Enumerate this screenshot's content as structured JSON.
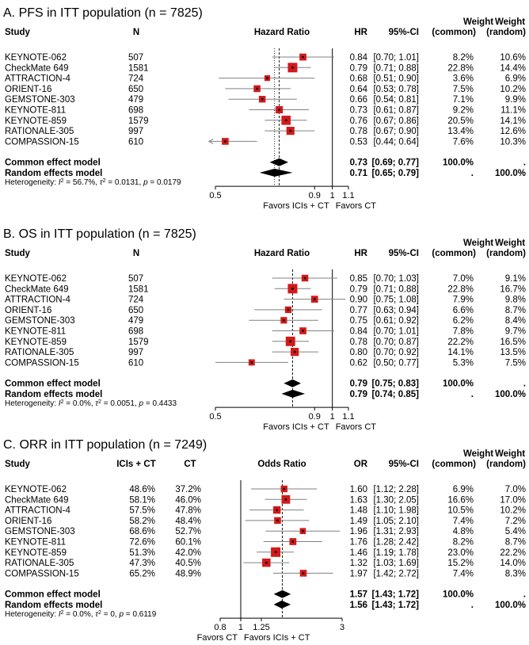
{
  "chart_data": [
    {
      "type": "forest",
      "title": "A. PFS in ITT population (n = 7825)",
      "columns": {
        "study": "Study",
        "n": "N",
        "plot": "Hazard Ratio",
        "est": "HR",
        "ci": "95%-CI",
        "w_top": "Weight",
        "w_top2": "Weight",
        "w_common": "(common)",
        "w_random": "(random)"
      },
      "xscale": "log",
      "xlim": [
        0.5,
        1.1
      ],
      "ticks": [
        0.5,
        0.9,
        1,
        1.1
      ],
      "tick_labels": [
        "0.5",
        "0.9",
        "1",
        "1.1"
      ],
      "reference": 1,
      "favors_left": "Favors ICIs + CT",
      "favors_right": "Favors CT",
      "studies": [
        {
          "name": "KEYNOTE-062",
          "c1": "507",
          "est": 0.84,
          "lo": 0.7,
          "hi": 1.01,
          "est_text": "0.84",
          "ci_text": "[0.70; 1.01]",
          "wc": "8.2%",
          "wr": "10.6%"
        },
        {
          "name": "CheckMate 649",
          "c1": "1581",
          "est": 0.79,
          "lo": 0.71,
          "hi": 0.88,
          "est_text": "0.79",
          "ci_text": "[0.71; 0.88]",
          "wc": "22.8%",
          "wr": "14.4%"
        },
        {
          "name": "ATTRACTION-4",
          "c1": "724",
          "est": 0.68,
          "lo": 0.51,
          "hi": 0.9,
          "est_text": "0.68",
          "ci_text": "[0.51; 0.90]",
          "wc": "3.6%",
          "wr": "6.9%"
        },
        {
          "name": "ORIENT-16",
          "c1": "650",
          "est": 0.64,
          "lo": 0.53,
          "hi": 0.78,
          "est_text": "0.64",
          "ci_text": "[0.53; 0.78]",
          "wc": "7.5%",
          "wr": "10.2%"
        },
        {
          "name": "GEMSTONE-303",
          "c1": "479",
          "est": 0.66,
          "lo": 0.54,
          "hi": 0.81,
          "est_text": "0.66",
          "ci_text": "[0.54; 0.81]",
          "wc": "7.1%",
          "wr": "9.9%"
        },
        {
          "name": "KEYNOTE-811",
          "c1": "698",
          "est": 0.73,
          "lo": 0.61,
          "hi": 0.87,
          "est_text": "0.73",
          "ci_text": "[0.61; 0.87]",
          "wc": "9.2%",
          "wr": "11.1%"
        },
        {
          "name": "KEYNOTE-859",
          "c1": "1579",
          "est": 0.76,
          "lo": 0.67,
          "hi": 0.86,
          "est_text": "0.76",
          "ci_text": "[0.67; 0.86]",
          "wc": "20.5%",
          "wr": "14.1%"
        },
        {
          "name": "RATIONALE-305",
          "c1": "997",
          "est": 0.78,
          "lo": 0.67,
          "hi": 0.9,
          "est_text": "0.78",
          "ci_text": "[0.67; 0.90]",
          "wc": "13.4%",
          "wr": "12.6%"
        },
        {
          "name": "COMPASSION-15",
          "c1": "610",
          "est": 0.53,
          "lo": 0.44,
          "hi": 0.64,
          "est_text": "0.53",
          "ci_text": "[0.44; 0.64]",
          "wc": "7.6%",
          "wr": "10.3%",
          "arrow_left": true
        }
      ],
      "common": {
        "label": "Common effect model",
        "est": 0.73,
        "lo": 0.69,
        "hi": 0.77,
        "est_text": "0.73",
        "ci_text": "[0.69; 0.77]",
        "wc": "100.0%",
        "wr": "."
      },
      "random": {
        "label": "Random effects model",
        "est": 0.71,
        "lo": 0.65,
        "hi": 0.79,
        "est_text": "0.71",
        "ci_text": "[0.65; 0.79]",
        "wc": ".",
        "wr": "100.0%"
      },
      "heterogeneity": {
        "prefix": "Heterogeneity: ",
        "i2": "56.7%",
        "tau2": "0.0131",
        "p": "0.0179"
      }
    },
    {
      "type": "forest",
      "title": "B. OS in ITT population (n = 7825)",
      "columns": {
        "study": "Study",
        "n": "N",
        "plot": "Hazard Ratio",
        "est": "HR",
        "ci": "95%-CI",
        "w_top": "Weight",
        "w_top2": "Weight",
        "w_common": "(common)",
        "w_random": "(random)"
      },
      "xscale": "log",
      "xlim": [
        0.5,
        1.1
      ],
      "ticks": [
        0.5,
        0.9,
        1,
        1.1
      ],
      "tick_labels": [
        "0.5",
        "0.9",
        "1",
        "1.1"
      ],
      "reference": 1,
      "favors_left": "Favors ICIs + CT",
      "favors_right": "Favors CT",
      "studies": [
        {
          "name": "KEYNOTE-062",
          "c1": "507",
          "est": 0.85,
          "lo": 0.7,
          "hi": 1.03,
          "est_text": "0.85",
          "ci_text": "[0.70; 1.03]",
          "wc": "7.0%",
          "wr": "9.1%"
        },
        {
          "name": "CheckMate 649",
          "c1": "1581",
          "est": 0.79,
          "lo": 0.71,
          "hi": 0.88,
          "est_text": "0.79",
          "ci_text": "[0.71; 0.88]",
          "wc": "22.8%",
          "wr": "16.7%"
        },
        {
          "name": "ATTRACTION-4",
          "c1": "724",
          "est": 0.9,
          "lo": 0.75,
          "hi": 1.08,
          "est_text": "0.90",
          "ci_text": "[0.75; 1.08]",
          "wc": "7.9%",
          "wr": "9.8%"
        },
        {
          "name": "ORIENT-16",
          "c1": "650",
          "est": 0.77,
          "lo": 0.63,
          "hi": 0.94,
          "est_text": "0.77",
          "ci_text": "[0.63; 0.94]",
          "wc": "6.6%",
          "wr": "8.7%"
        },
        {
          "name": "GEMSTONE-303",
          "c1": "479",
          "est": 0.75,
          "lo": 0.61,
          "hi": 0.92,
          "est_text": "0.75",
          "ci_text": "[0.61; 0.92]",
          "wc": "6.2%",
          "wr": "8.4%"
        },
        {
          "name": "KEYNOTE-811",
          "c1": "698",
          "est": 0.84,
          "lo": 0.7,
          "hi": 1.01,
          "est_text": "0.84",
          "ci_text": "[0.70; 1.01]",
          "wc": "7.8%",
          "wr": "9.7%"
        },
        {
          "name": "KEYNOTE-859",
          "c1": "1579",
          "est": 0.78,
          "lo": 0.7,
          "hi": 0.87,
          "est_text": "0.78",
          "ci_text": "[0.70; 0.87]",
          "wc": "22.2%",
          "wr": "16.5%"
        },
        {
          "name": "RATIONALE-305",
          "c1": "997",
          "est": 0.8,
          "lo": 0.7,
          "hi": 0.92,
          "est_text": "0.80",
          "ci_text": "[0.70; 0.92]",
          "wc": "14.1%",
          "wr": "13.5%"
        },
        {
          "name": "COMPASSION-15",
          "c1": "610",
          "est": 0.62,
          "lo": 0.5,
          "hi": 0.77,
          "est_text": "0.62",
          "ci_text": "[0.50; 0.77]",
          "wc": "5.3%",
          "wr": "7.5%",
          "arrow_left": true
        }
      ],
      "common": {
        "label": "Common effect model",
        "est": 0.79,
        "lo": 0.75,
        "hi": 0.83,
        "est_text": "0.79",
        "ci_text": "[0.75; 0.83]",
        "wc": "100.0%",
        "wr": "."
      },
      "random": {
        "label": "Random effects model",
        "est": 0.79,
        "lo": 0.74,
        "hi": 0.85,
        "est_text": "0.79",
        "ci_text": "[0.74; 0.85]",
        "wc": ".",
        "wr": "100.0%"
      },
      "heterogeneity": {
        "prefix": "Heterogeneity: ",
        "i2": "0.0%",
        "tau2": "0.0051",
        "p": "0.4433"
      }
    },
    {
      "type": "forest",
      "title": "C. ORR in ITT population (n = 7249)",
      "columns": {
        "study": "Study",
        "n": "ICIs + CT",
        "n2": "CT",
        "plot": "Odds Ratio",
        "est": "OR",
        "ci": "95%-CI",
        "w_top": "Weight",
        "w_top2": "Weight",
        "w_common": "(common)",
        "w_random": "(random)"
      },
      "xscale": "log",
      "xlim": [
        0.8,
        3
      ],
      "ticks": [
        0.8,
        1,
        1.25,
        3
      ],
      "tick_labels": [
        "0.8",
        "1",
        "1.25",
        "3"
      ],
      "reference": 1,
      "favors_left": "Favors CT",
      "favors_right": "Favors ICIs + CT",
      "studies": [
        {
          "name": "KEYNOTE-062",
          "c1": "48.6%",
          "c2": "37.2%",
          "est": 1.6,
          "lo": 1.12,
          "hi": 2.28,
          "est_text": "1.60",
          "ci_text": "[1.12; 2.28]",
          "wc": "6.9%",
          "wr": "7.0%"
        },
        {
          "name": "CheckMate 649",
          "c1": "58.1%",
          "c2": "46.0%",
          "est": 1.63,
          "lo": 1.3,
          "hi": 2.05,
          "est_text": "1.63",
          "ci_text": "[1.30; 2.05]",
          "wc": "16.6%",
          "wr": "17.0%"
        },
        {
          "name": "ATTRACTION-4",
          "c1": "57.5%",
          "c2": "47.8%",
          "est": 1.48,
          "lo": 1.1,
          "hi": 1.98,
          "est_text": "1.48",
          "ci_text": "[1.10; 1.98]",
          "wc": "10.5%",
          "wr": "10.2%"
        },
        {
          "name": "ORIENT-16",
          "c1": "58.2%",
          "c2": "48.4%",
          "est": 1.49,
          "lo": 1.05,
          "hi": 2.1,
          "est_text": "1.49",
          "ci_text": "[1.05; 2.10]",
          "wc": "7.4%",
          "wr": "7.2%"
        },
        {
          "name": "GEMSTONE-303",
          "c1": "68.6%",
          "c2": "52.7%",
          "est": 1.96,
          "lo": 1.31,
          "hi": 2.93,
          "est_text": "1.96",
          "ci_text": "[1.31; 2.93]",
          "wc": "4.8%",
          "wr": "5.4%"
        },
        {
          "name": "KEYNOTE-811",
          "c1": "72.6%",
          "c2": "60.1%",
          "est": 1.76,
          "lo": 1.28,
          "hi": 2.42,
          "est_text": "1.76",
          "ci_text": "[1.28; 2.42]",
          "wc": "8.2%",
          "wr": "8.7%"
        },
        {
          "name": "KEYNOTE-859",
          "c1": "51.3%",
          "c2": "42.0%",
          "est": 1.46,
          "lo": 1.19,
          "hi": 1.78,
          "est_text": "1.46",
          "ci_text": "[1.19; 1.78]",
          "wc": "23.0%",
          "wr": "22.2%"
        },
        {
          "name": "RATIONALE-305",
          "c1": "47.3%",
          "c2": "40.5%",
          "est": 1.32,
          "lo": 1.03,
          "hi": 1.69,
          "est_text": "1.32",
          "ci_text": "[1.03; 1.69]",
          "wc": "15.2%",
          "wr": "14.0%"
        },
        {
          "name": "COMPASSION-15",
          "c1": "65.2%",
          "c2": "48.9%",
          "est": 1.97,
          "lo": 1.42,
          "hi": 2.72,
          "est_text": "1.97",
          "ci_text": "[1.42; 2.72]",
          "wc": "7.4%",
          "wr": "8.3%"
        }
      ],
      "common": {
        "label": "Common effect model",
        "est": 1.57,
        "lo": 1.43,
        "hi": 1.72,
        "est_text": "1.57",
        "ci_text": "[1.43; 1.72]",
        "wc": "100.0%",
        "wr": "."
      },
      "random": {
        "label": "Random effects model",
        "est": 1.56,
        "lo": 1.43,
        "hi": 1.72,
        "est_text": "1.56",
        "ci_text": "[1.43; 1.72]",
        "wc": ".",
        "wr": "100.0%"
      },
      "heterogeneity": {
        "prefix": "Heterogeneity: ",
        "i2": "0.0%",
        "tau2": "0",
        "p": "0.6119"
      }
    }
  ]
}
